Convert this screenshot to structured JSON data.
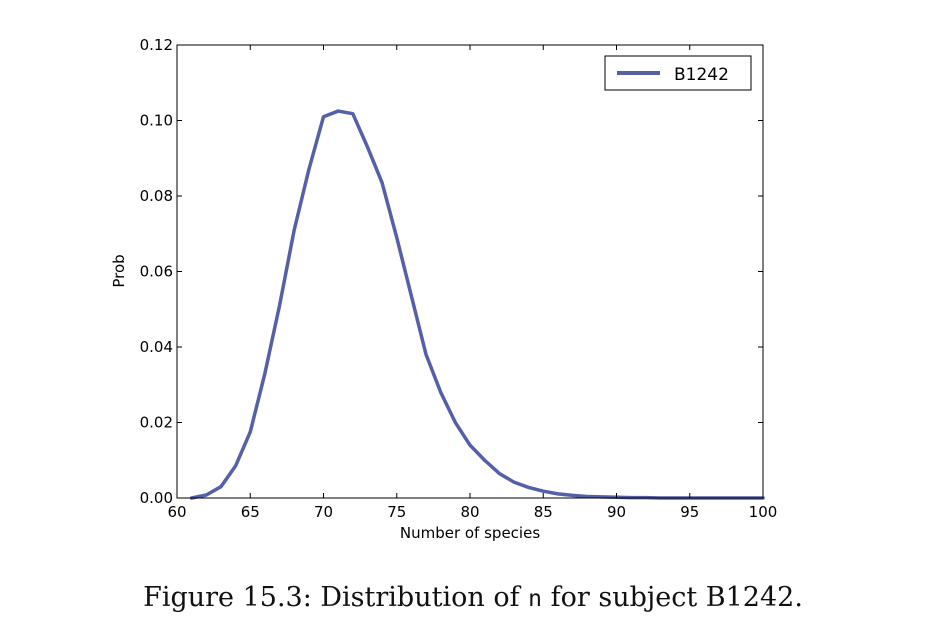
{
  "chart_data": {
    "type": "line",
    "title": "",
    "xlabel": "Number of species",
    "ylabel": "Prob",
    "xlim": [
      60,
      100
    ],
    "ylim": [
      0.0,
      0.12
    ],
    "x_ticks": [
      "60",
      "65",
      "70",
      "75",
      "80",
      "85",
      "90",
      "95",
      "100"
    ],
    "x_tick_values": [
      60,
      65,
      70,
      75,
      80,
      85,
      90,
      95,
      100
    ],
    "y_ticks": [
      "0.00",
      "0.02",
      "0.04",
      "0.06",
      "0.08",
      "0.10",
      "0.12"
    ],
    "y_tick_values": [
      0.0,
      0.02,
      0.04,
      0.06,
      0.08,
      0.1,
      0.12
    ],
    "grid": false,
    "legend_position": "top-right",
    "series": [
      {
        "name": "B1242",
        "color": "#5560a8",
        "x": [
          61,
          62,
          63,
          64,
          65,
          66,
          67,
          68,
          69,
          70,
          71,
          72,
          73,
          74,
          75,
          76,
          77,
          78,
          79,
          80,
          81,
          82,
          83,
          84,
          85,
          86,
          87,
          88,
          89,
          90,
          91,
          92,
          93,
          94,
          95,
          96,
          97,
          98,
          99,
          100
        ],
        "y": [
          0.0,
          0.0008,
          0.003,
          0.0085,
          0.0175,
          0.033,
          0.051,
          0.071,
          0.087,
          0.101,
          0.1025,
          0.1018,
          0.093,
          0.0835,
          0.069,
          0.0535,
          0.038,
          0.028,
          0.02,
          0.014,
          0.01,
          0.0065,
          0.0042,
          0.0028,
          0.0018,
          0.0011,
          0.0007,
          0.0004,
          0.0003,
          0.0002,
          0.0001,
          0.0001,
          0.0,
          0.0,
          0.0,
          0.0,
          0.0,
          0.0,
          0.0,
          0.0
        ]
      }
    ]
  },
  "caption": {
    "prefix": "Figure 15.3: Distribution of ",
    "code": "n",
    "suffix": " for subject B1242."
  }
}
